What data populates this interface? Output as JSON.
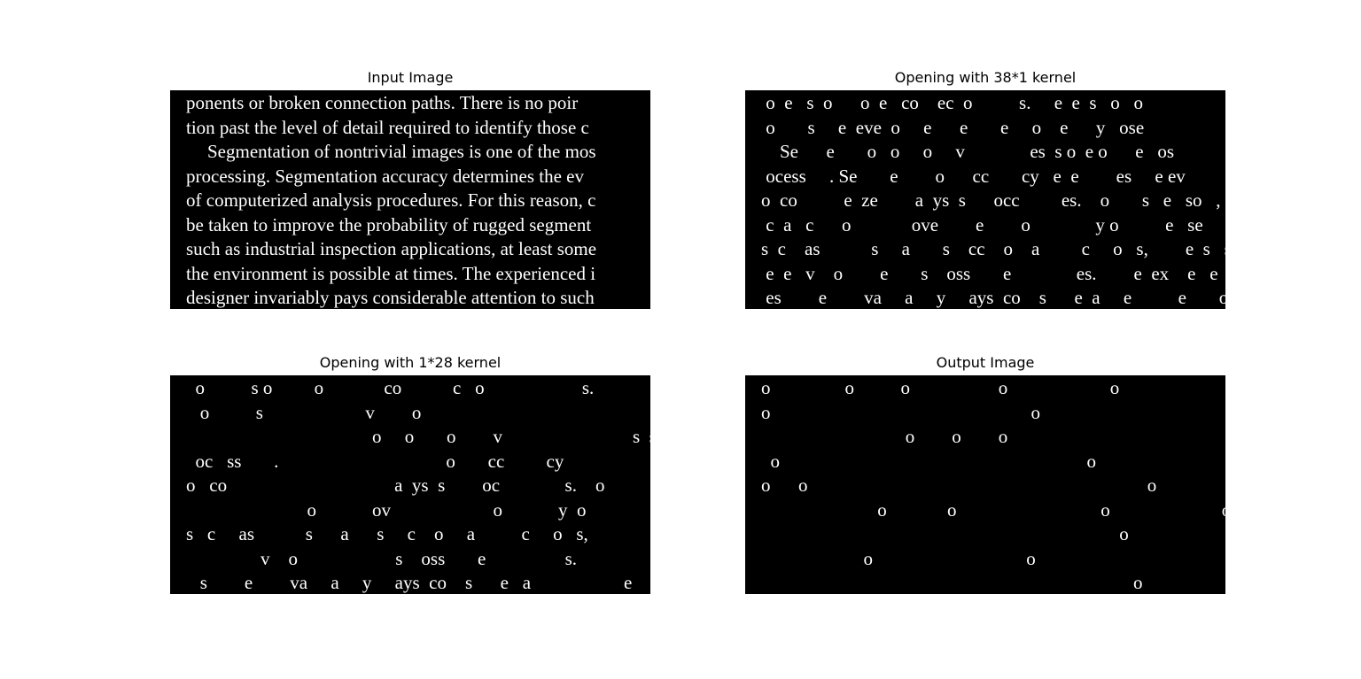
{
  "panels": [
    {
      "title": "Input Image",
      "lines": [
        "ponents or broken connection paths. There is no poir",
        "tion past the level of detail required to identify those c",
        "Segmentation of nontrivial images is one of the mos",
        "processing. Segmentation accuracy determines the ev",
        "of computerized analysis procedures. For this reason, c",
        "be taken to improve the probability of rugged segment",
        "such as industrial inspection applications, at least some",
        "the environment is possible at times. The experienced i",
        "designer invariably pays considerable attention to such"
      ]
    },
    {
      "title": "Opening with 38*1 kernel",
      "lines": [
        " o  e   s  o      o  e   co    ec  o          s.     e  e  s   o   o",
        " o       s     e  eve  o     e      e       e     o    e      y   ose",
        "    Se      e       o   o     o     v              es  s o  e o      e   os",
        " ocess     . Se       e        o      cc       cy   e  e        es     e ev",
        "o  co          e  ze        a  ys  s      occ         es.    o       s   e   so   ,",
        " c  a   c      o             ove        e        o              y o          e   se      c",
        "s  c    as           s     a       s    cc    o    a         c     o   s,        e  s   so    e",
        " e  e   v    o        e       s    oss       e              es.        e  ex    e   e  ce",
        " es        e        va     a     y     ays  co    s      e  a     e          e       o      o s  c"
      ]
    },
    {
      "title": "Opening with 1*28 kernel",
      "lines": [
        "  o          s o         o             co           c   o                     s.                        s    o    o",
        "   o          s                      v        o                                                   o               y      os",
        "                                        o     o       o        v                            s  s o         o                 os",
        "  oc   ss       .                                    o       cc         cy                               s                v",
        "o   co                                    a  ys  s        oc              s.    o          s          so  ,",
        "                          o            ov                      o            y  o                     s",
        "s   c     as           s      a      s     c    o     a          c     o   s,              s   so",
        "                v    o                     s    oss       e                 s.                  x              c",
        "   s        e        va     a     y     ays  co    s      e   a                    e        o      o  s   c"
      ]
    },
    {
      "title": "Output Image",
      "lines": [
        "o                o          o                   o                      o                                                                   o       o",
        "o                                                        o                                                                 o                           o",
        "                               o        o        o                                                                                   o           o                    o",
        "  o                                                                  o",
        "o      o                                                                         o                            o                           o",
        "                         o             o                               o                        o",
        "                                                                             o                               o                              o",
        "                      o                                 o",
        "                                                                                o                                                   o         o"
      ]
    }
  ]
}
